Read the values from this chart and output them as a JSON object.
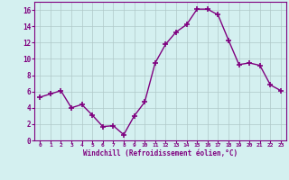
{
  "x": [
    0,
    1,
    2,
    3,
    4,
    5,
    6,
    7,
    8,
    9,
    10,
    11,
    12,
    13,
    14,
    15,
    16,
    17,
    18,
    19,
    20,
    21,
    22,
    23
  ],
  "y": [
    5.3,
    5.7,
    6.1,
    4.0,
    4.4,
    3.1,
    1.7,
    1.8,
    0.7,
    3.0,
    4.7,
    9.5,
    11.8,
    13.3,
    14.2,
    16.1,
    16.1,
    15.4,
    12.3,
    9.3,
    9.5,
    9.2,
    6.8,
    6.1
  ],
  "line_color": "#7f007f",
  "marker": "+",
  "marker_size": 4,
  "bg_color": "#d4f0f0",
  "grid_color": "#b0c8c8",
  "xlabel": "Windchill (Refroidissement éolien,°C)",
  "xlabel_color": "#7f007f",
  "tick_color": "#7f007f",
  "spine_color": "#7f007f",
  "ylim": [
    0,
    17
  ],
  "yticks": [
    0,
    2,
    4,
    6,
    8,
    10,
    12,
    14,
    16
  ],
  "xlim": [
    -0.5,
    23.5
  ],
  "xticks": [
    0,
    1,
    2,
    3,
    4,
    5,
    6,
    7,
    8,
    9,
    10,
    11,
    12,
    13,
    14,
    15,
    16,
    17,
    18,
    19,
    20,
    21,
    22,
    23
  ]
}
